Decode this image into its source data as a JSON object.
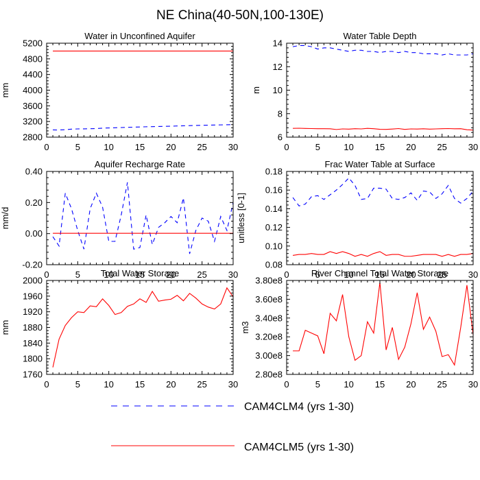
{
  "figure": {
    "title": "NE China(40-50N,100-130E)",
    "legend": [
      {
        "label": "CAM4CLM4 (yrs 1-30)",
        "color": "#0000ff",
        "style": "dashed"
      },
      {
        "label": "CAM4CLM5 (yrs 1-30)",
        "color": "#ff0000",
        "style": "solid"
      }
    ]
  },
  "chart_data": [
    {
      "type": "line",
      "title": "Water in Unconfined Aquifer",
      "xlabel": "",
      "ylabel": "mm",
      "xlim": [
        0,
        30
      ],
      "ylim": [
        2800,
        5200
      ],
      "xticks": [
        0,
        5,
        10,
        15,
        20,
        25,
        30
      ],
      "xtick_labels": [
        "0",
        "5",
        "10",
        "15",
        "20",
        "25",
        "30"
      ],
      "yticks": [
        2800,
        3200,
        3600,
        4000,
        4400,
        4800,
        5200
      ],
      "ytick_labels": [
        "2800",
        "3200",
        "3600",
        "4000",
        "4400",
        "4800",
        "5200"
      ],
      "x": [
        1,
        2,
        3,
        4,
        5,
        6,
        7,
        8,
        9,
        10,
        11,
        12,
        13,
        14,
        15,
        16,
        17,
        18,
        19,
        20,
        21,
        22,
        23,
        24,
        25,
        26,
        27,
        28,
        29,
        30
      ],
      "series": [
        {
          "name": "CAM4CLM4 (yrs 1-30)",
          "color": "#0000ff",
          "style": "dashed",
          "values": [
            2985,
            2983,
            2990,
            3005,
            3010,
            3012,
            3015,
            3020,
            3030,
            3035,
            3040,
            3045,
            3050,
            3055,
            3060,
            3065,
            3068,
            3072,
            3076,
            3080,
            3085,
            3090,
            3094,
            3098,
            3102,
            3106,
            3110,
            3113,
            3116,
            3120
          ]
        },
        {
          "name": "CAM4CLM5 (yrs 1-30)",
          "color": "#ff0000",
          "style": "solid",
          "values": [
            5000,
            5000,
            5000,
            5000,
            5000,
            5000,
            5000,
            5000,
            5000,
            5000,
            5000,
            5000,
            5000,
            5000,
            5000,
            5000,
            5000,
            5000,
            5000,
            5000,
            5000,
            5000,
            5000,
            5000,
            5000,
            5000,
            5000,
            5000,
            5000,
            5000
          ]
        }
      ]
    },
    {
      "type": "line",
      "title": "Water Table Depth",
      "xlabel": "",
      "ylabel": "m",
      "xlim": [
        0,
        30
      ],
      "ylim": [
        6,
        14
      ],
      "xticks": [
        0,
        5,
        10,
        15,
        20,
        25,
        30
      ],
      "xtick_labels": [
        "0",
        "5",
        "10",
        "15",
        "20",
        "25",
        "30"
      ],
      "yticks": [
        6,
        8,
        10,
        12,
        14
      ],
      "ytick_labels": [
        "6",
        "8",
        "10",
        "12",
        "14"
      ],
      "x": [
        1,
        2,
        3,
        4,
        5,
        6,
        7,
        8,
        9,
        10,
        11,
        12,
        13,
        14,
        15,
        16,
        17,
        18,
        19,
        20,
        21,
        22,
        23,
        24,
        25,
        26,
        27,
        28,
        29,
        30
      ],
      "series": [
        {
          "name": "CAM4CLM4 (yrs 1-30)",
          "color": "#0000ff",
          "style": "dashed",
          "values": [
            13.7,
            13.8,
            13.8,
            13.7,
            13.5,
            13.6,
            13.6,
            13.5,
            13.4,
            13.3,
            13.4,
            13.4,
            13.3,
            13.3,
            13.2,
            13.3,
            13.3,
            13.2,
            13.3,
            13.2,
            13.2,
            13.1,
            13.1,
            13.1,
            13.0,
            13.1,
            13.0,
            13.0,
            13.0,
            13.1
          ]
        },
        {
          "name": "CAM4CLM5 (yrs 1-30)",
          "color": "#ff0000",
          "style": "solid",
          "values": [
            6.75,
            6.76,
            6.74,
            6.73,
            6.72,
            6.72,
            6.71,
            6.65,
            6.7,
            6.68,
            6.72,
            6.7,
            6.75,
            6.72,
            6.67,
            6.66,
            6.69,
            6.73,
            6.66,
            6.7,
            6.69,
            6.71,
            6.68,
            6.7,
            6.72,
            6.73,
            6.71,
            6.72,
            6.63,
            6.6
          ]
        }
      ]
    },
    {
      "type": "line",
      "title": "Aquifer Recharge Rate",
      "xlabel": "",
      "ylabel": "mm/d",
      "xlim": [
        0,
        30
      ],
      "ylim": [
        -0.2,
        0.4
      ],
      "xticks": [
        0,
        5,
        10,
        15,
        20,
        25,
        30
      ],
      "xtick_labels": [
        "0",
        "5",
        "10",
        "15",
        "20",
        "25",
        "30"
      ],
      "yticks": [
        -0.2,
        0,
        0.2,
        0.4
      ],
      "ytick_labels": [
        "-0.20",
        "0.00",
        "0.20",
        "0.40"
      ],
      "x": [
        1,
        2,
        3,
        4,
        5,
        6,
        7,
        8,
        9,
        10,
        11,
        12,
        13,
        14,
        15,
        16,
        17,
        18,
        19,
        20,
        21,
        22,
        23,
        24,
        25,
        26,
        27,
        28,
        29,
        30
      ],
      "series": [
        {
          "name": "CAM4CLM4 (yrs 1-30)",
          "color": "#0000ff",
          "style": "dashed",
          "values": [
            -0.02,
            -0.08,
            0.26,
            0.16,
            0.02,
            -0.1,
            0.16,
            0.26,
            0.17,
            -0.05,
            -0.05,
            0.12,
            0.33,
            -0.1,
            -0.09,
            0.12,
            -0.07,
            0.04,
            0.07,
            0.11,
            0.07,
            0.23,
            -0.13,
            0.02,
            0.1,
            0.08,
            -0.05,
            0.11,
            0.02,
            0.2
          ]
        },
        {
          "name": "CAM4CLM5 (yrs 1-30)",
          "color": "#ff0000",
          "style": "solid",
          "values": [
            0.002,
            0.002,
            0.002,
            0.002,
            0.002,
            0.002,
            0.002,
            0.002,
            0.002,
            0.002,
            0.002,
            0.002,
            0.002,
            0.002,
            0.002,
            0.002,
            0.002,
            0.002,
            0.002,
            0.002,
            0.002,
            0.002,
            0.002,
            0.002,
            0.002,
            0.002,
            0.002,
            0.002,
            0.002,
            0.002
          ]
        }
      ]
    },
    {
      "type": "line",
      "title": "Frac Water Table at Surface",
      "xlabel": "",
      "ylabel": "unitless [0-1]",
      "xlim": [
        0,
        30
      ],
      "ylim": [
        0.08,
        0.18
      ],
      "xticks": [
        0,
        5,
        10,
        15,
        20,
        25,
        30
      ],
      "xtick_labels": [
        "0",
        "5",
        "10",
        "15",
        "20",
        "25",
        "30"
      ],
      "yticks": [
        0.08,
        0.1,
        0.12,
        0.14,
        0.16,
        0.18
      ],
      "ytick_labels": [
        "0.08",
        "0.10",
        "0.12",
        "0.14",
        "0.16",
        "0.18"
      ],
      "x": [
        1,
        2,
        3,
        4,
        5,
        6,
        7,
        8,
        9,
        10,
        11,
        12,
        13,
        14,
        15,
        16,
        17,
        18,
        19,
        20,
        21,
        22,
        23,
        24,
        25,
        26,
        27,
        28,
        29,
        30
      ],
      "series": [
        {
          "name": "CAM4CLM4 (yrs 1-30)",
          "color": "#0000ff",
          "style": "dashed",
          "values": [
            0.152,
            0.143,
            0.145,
            0.153,
            0.154,
            0.15,
            0.155,
            0.16,
            0.166,
            0.173,
            0.165,
            0.15,
            0.151,
            0.162,
            0.162,
            0.161,
            0.151,
            0.15,
            0.152,
            0.157,
            0.149,
            0.159,
            0.158,
            0.151,
            0.156,
            0.165,
            0.151,
            0.146,
            0.151,
            0.159
          ]
        },
        {
          "name": "CAM4CLM5 (yrs 1-30)",
          "color": "#ff0000",
          "style": "solid",
          "values": [
            0.09,
            0.091,
            0.091,
            0.092,
            0.091,
            0.091,
            0.094,
            0.092,
            0.094,
            0.092,
            0.089,
            0.091,
            0.089,
            0.092,
            0.094,
            0.09,
            0.091,
            0.091,
            0.089,
            0.089,
            0.09,
            0.091,
            0.091,
            0.091,
            0.089,
            0.091,
            0.089,
            0.091,
            0.091,
            0.092
          ]
        }
      ]
    },
    {
      "type": "line",
      "title": "Total Water Storage",
      "xlabel": "",
      "ylabel": "mm",
      "xlim": [
        0,
        30
      ],
      "ylim": [
        1760,
        2000
      ],
      "xticks": [
        0,
        5,
        10,
        15,
        20,
        25,
        30
      ],
      "xtick_labels": [
        "0",
        "5",
        "10",
        "15",
        "20",
        "25",
        "30"
      ],
      "yticks": [
        1760,
        1800,
        1840,
        1880,
        1920,
        1960,
        2000
      ],
      "ytick_labels": [
        "1760",
        "1800",
        "1840",
        "1880",
        "1920",
        "1960",
        "2000"
      ],
      "x": [
        1,
        2,
        3,
        4,
        5,
        6,
        7,
        8,
        9,
        10,
        11,
        12,
        13,
        14,
        15,
        16,
        17,
        18,
        19,
        20,
        21,
        22,
        23,
        24,
        25,
        26,
        27,
        28,
        29,
        30
      ],
      "series": [
        {
          "name": "CAM4CLM5 (yrs 1-30)",
          "color": "#ff0000",
          "style": "solid",
          "values": [
            1778,
            1850,
            1885,
            1905,
            1920,
            1918,
            1935,
            1933,
            1953,
            1936,
            1913,
            1918,
            1934,
            1940,
            1953,
            1944,
            1972,
            1947,
            1950,
            1952,
            1962,
            1948,
            1967,
            1955,
            1940,
            1932,
            1927,
            1940,
            1981,
            1958
          ]
        }
      ]
    },
    {
      "type": "line",
      "title": "River Channel Total Water Storage",
      "xlabel": "",
      "ylabel": "m3",
      "xlim": [
        0,
        30
      ],
      "ylim": [
        280000000.0,
        380000000.0
      ],
      "xticks": [
        0,
        5,
        10,
        15,
        20,
        25,
        30
      ],
      "xtick_labels": [
        "0",
        "5",
        "10",
        "15",
        "20",
        "25",
        "30"
      ],
      "yticks": [
        280000000.0,
        300000000.0,
        320000000.0,
        340000000.0,
        360000000.0,
        380000000.0
      ],
      "ytick_labels": [
        "2.80e8",
        "3.00e8",
        "3.20e8",
        "3.40e8",
        "3.60e8",
        "3.80e8"
      ],
      "x": [
        1,
        2,
        3,
        4,
        5,
        6,
        7,
        8,
        9,
        10,
        11,
        12,
        13,
        14,
        15,
        16,
        17,
        18,
        19,
        20,
        21,
        22,
        23,
        24,
        25,
        26,
        27,
        28,
        29,
        30
      ],
      "series": [
        {
          "name": "CAM4CLM5 (yrs 1-30)",
          "color": "#ff0000",
          "style": "solid",
          "values": [
            305000000,
            305000000,
            327000000,
            324000000,
            321000000,
            302000000,
            345000000,
            337000000,
            365000000,
            320000000,
            295000000,
            300000000,
            336000000,
            324000000,
            378000000,
            306000000,
            330000000,
            296000000,
            309000000,
            334000000,
            367000000,
            328000000,
            341000000,
            326000000,
            299000000,
            301000000,
            290000000,
            330000000,
            375000000,
            322000000
          ]
        }
      ]
    }
  ]
}
